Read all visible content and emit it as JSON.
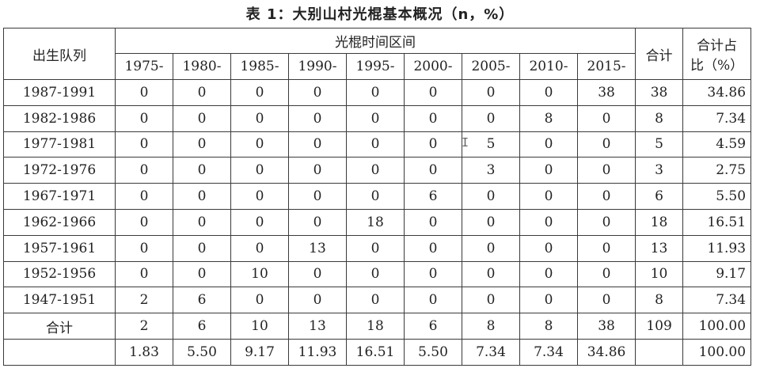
{
  "caption": "表 1：大别山村光棍基本概况（n，%）",
  "headers": {
    "cohort": "出生队列",
    "period_group": "光棍时间区间",
    "periods": [
      "1975-",
      "1980-",
      "1985-",
      "1990-",
      "1995-",
      "2000-",
      "2005-",
      "2010-",
      "2015-"
    ],
    "total": "合计",
    "share": "合计占比（%）",
    "share_line1": "合计占",
    "share_line2": "比（%）"
  },
  "rows": [
    {
      "cohort": "1987-1991",
      "values": [
        "0",
        "0",
        "0",
        "0",
        "0",
        "0",
        "0",
        "0",
        "38"
      ],
      "total": "38",
      "share": "34.86"
    },
    {
      "cohort": "1982-1986",
      "values": [
        "0",
        "0",
        "0",
        "0",
        "0",
        "0",
        "0",
        "8",
        "0"
      ],
      "total": "8",
      "share": "7.34"
    },
    {
      "cohort": "1977-1981",
      "values": [
        "0",
        "0",
        "0",
        "0",
        "0",
        "0",
        "5",
        "0",
        "0"
      ],
      "total": "5",
      "share": "4.59"
    },
    {
      "cohort": "1972-1976",
      "values": [
        "0",
        "0",
        "0",
        "0",
        "0",
        "0",
        "3",
        "0",
        "0"
      ],
      "total": "3",
      "share": "2.75"
    },
    {
      "cohort": "1967-1971",
      "values": [
        "0",
        "0",
        "0",
        "0",
        "0",
        "6",
        "0",
        "0",
        "0"
      ],
      "total": "6",
      "share": "5.50"
    },
    {
      "cohort": "1962-1966",
      "values": [
        "0",
        "0",
        "0",
        "0",
        "18",
        "0",
        "0",
        "0",
        "0"
      ],
      "total": "18",
      "share": "16.51"
    },
    {
      "cohort": "1957-1961",
      "values": [
        "0",
        "0",
        "0",
        "13",
        "0",
        "0",
        "0",
        "0",
        "0"
      ],
      "total": "13",
      "share": "11.93"
    },
    {
      "cohort": "1952-1956",
      "values": [
        "0",
        "0",
        "10",
        "0",
        "0",
        "0",
        "0",
        "0",
        "0"
      ],
      "total": "10",
      "share": "9.17"
    },
    {
      "cohort": "1947-1951",
      "values": [
        "2",
        "6",
        "0",
        "0",
        "0",
        "0",
        "0",
        "0",
        "0"
      ],
      "total": "8",
      "share": "7.34"
    }
  ],
  "total_row": {
    "label": "合计",
    "values": [
      "2",
      "6",
      "10",
      "13",
      "18",
      "6",
      "8",
      "8",
      "38"
    ],
    "total": "109",
    "share": "100.00"
  },
  "share_row": {
    "values": [
      "1.83",
      "5.50",
      "9.17",
      "11.93",
      "16.51",
      "5.50",
      "7.34",
      "7.34",
      "34.86"
    ],
    "share": "100.00"
  },
  "cursor_glyph": "I"
}
